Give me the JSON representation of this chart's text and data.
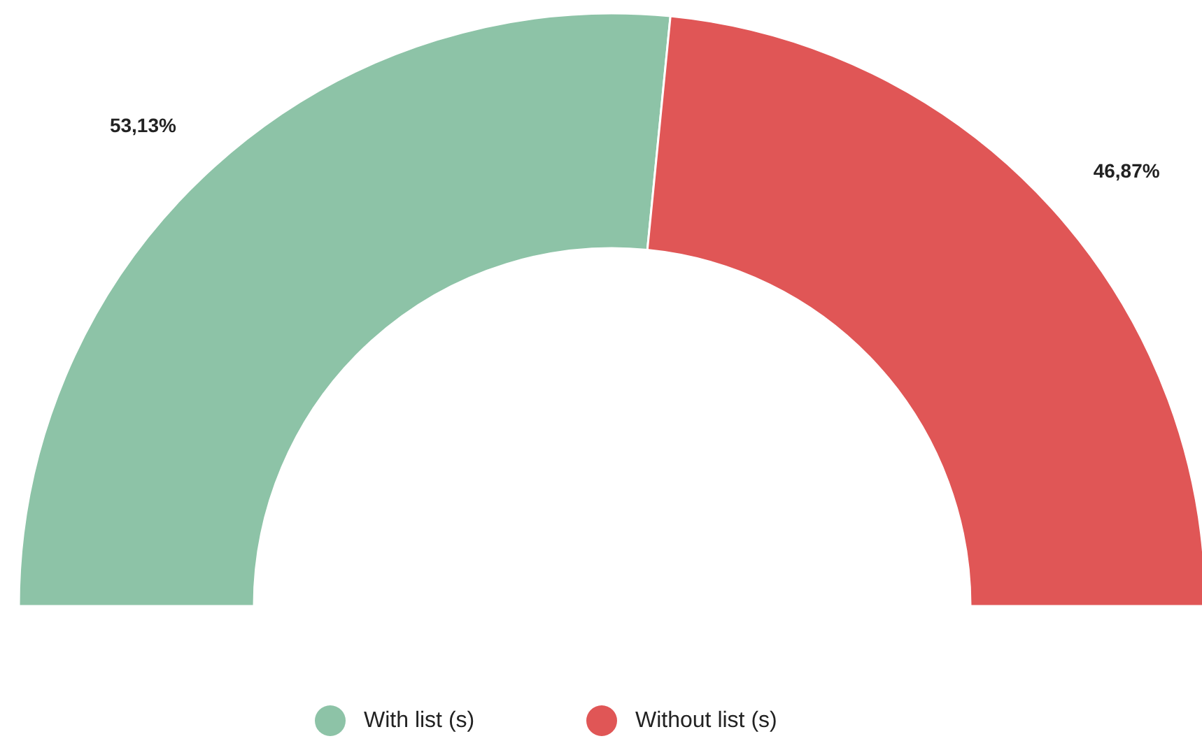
{
  "chart_data": {
    "type": "donut",
    "categories": [
      "With list (s)",
      "Without list (s)"
    ],
    "values": [
      53.13,
      46.87
    ],
    "colors": [
      "#8dc3a7",
      "#e05656"
    ],
    "value_labels": [
      "53,13%",
      "46,87%"
    ],
    "legend": "bottom"
  }
}
